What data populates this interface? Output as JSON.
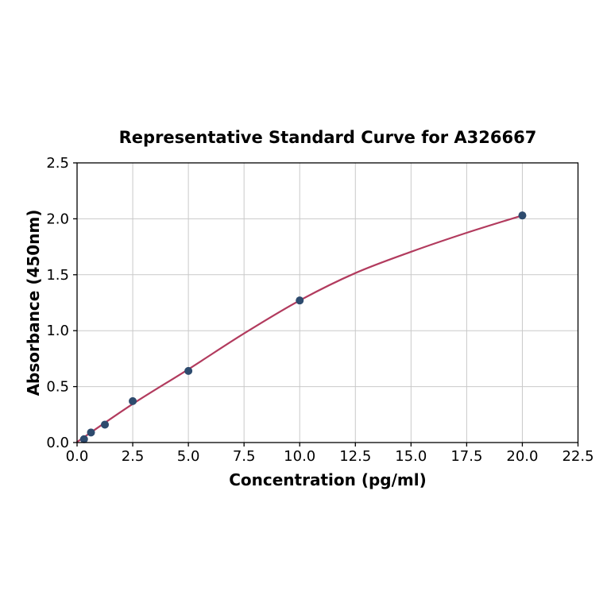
{
  "chart_data": {
    "type": "scatter",
    "title": "Representative Standard Curve for A326667",
    "xlabel": "Concentration (pg/ml)",
    "ylabel": "Absorbance (450nm)",
    "xlim": [
      0,
      22.5
    ],
    "ylim": [
      0,
      2.5
    ],
    "x_ticks": [
      0.0,
      2.5,
      5.0,
      7.5,
      10.0,
      12.5,
      15.0,
      17.5,
      20.0,
      22.5
    ],
    "x_tick_labels": [
      "0.0",
      "2.5",
      "5.0",
      "7.5",
      "10.0",
      "12.5",
      "15.0",
      "17.5",
      "20.0",
      "22.5"
    ],
    "y_ticks": [
      0.0,
      0.5,
      1.0,
      1.5,
      2.0,
      2.5
    ],
    "y_tick_labels": [
      "0.0",
      "0.5",
      "1.0",
      "1.5",
      "2.0",
      "2.5"
    ],
    "grid": true,
    "legend": "none",
    "series": [
      {
        "name": "standards",
        "x": [
          0.3125,
          0.625,
          1.25,
          2.5,
          5.0,
          10.0,
          20.0
        ],
        "y": [
          0.03,
          0.09,
          0.16,
          0.37,
          0.64,
          1.27,
          2.03
        ]
      }
    ],
    "fit_curve": {
      "x": [
        0,
        2.5,
        5.0,
        7.5,
        10.0,
        12.5,
        15.0,
        17.5,
        20.0
      ],
      "y": [
        0.005,
        0.345,
        0.655,
        0.975,
        1.27,
        1.515,
        1.705,
        1.875,
        2.03
      ]
    },
    "colors": {
      "curve": "#b23b5e",
      "marker": "#2e4b6e",
      "grid": "#c9c9c9",
      "axis": "#000000",
      "text": "#000000",
      "background": "#ffffff"
    }
  }
}
